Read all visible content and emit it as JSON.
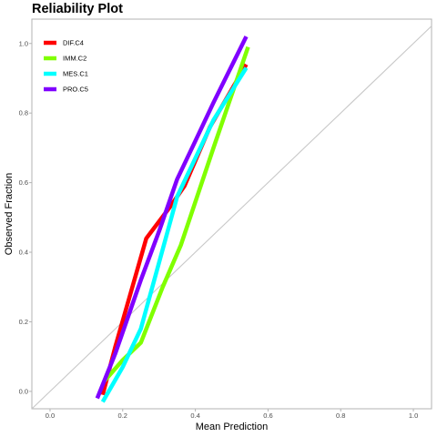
{
  "chart_data": {
    "type": "line",
    "title": "Reliability Plot",
    "xlabel": "Mean Prediction",
    "ylabel": "Observed Fraction",
    "xlim": [
      -0.05,
      1.05
    ],
    "ylim": [
      -0.05,
      1.07
    ],
    "x_ticks": [
      0.0,
      0.2,
      0.4,
      0.6,
      0.8,
      1.0
    ],
    "x_tick_labels": [
      "0.0",
      "0.2",
      "0.4",
      "0.6",
      "0.8",
      "1.0"
    ],
    "y_ticks": [
      0.0,
      0.2,
      0.4,
      0.6,
      0.8,
      1.0
    ],
    "y_tick_labels": [
      "0.0",
      "0.2",
      "0.4",
      "0.6",
      "0.8",
      "1.0"
    ],
    "grid": false,
    "legend_position": "top-left",
    "reference_line": {
      "x": [
        -0.05,
        1.05
      ],
      "y": [
        -0.05,
        1.05
      ],
      "color": "#c8c8c8"
    },
    "series": [
      {
        "name": "DIF.C4",
        "color": "#ff0000",
        "x": [
          0.145,
          0.18,
          0.265,
          0.33,
          0.37,
          0.44,
          0.54
        ],
        "y": [
          -0.01,
          0.13,
          0.44,
          0.53,
          0.59,
          0.76,
          0.94
        ]
      },
      {
        "name": "IMM.C2",
        "color": "#80ff00",
        "x": [
          0.15,
          0.2,
          0.25,
          0.31,
          0.36,
          0.45,
          0.545
        ],
        "y": [
          0.03,
          0.09,
          0.14,
          0.3,
          0.42,
          0.7,
          0.99
        ]
      },
      {
        "name": "MES.C1",
        "color": "#00ffff",
        "x": [
          0.145,
          0.2,
          0.25,
          0.3,
          0.35,
          0.45,
          0.54
        ],
        "y": [
          -0.03,
          0.07,
          0.18,
          0.37,
          0.56,
          0.78,
          0.93
        ]
      },
      {
        "name": "PRO.C5",
        "color": "#8000ff",
        "x": [
          0.13,
          0.18,
          0.25,
          0.3,
          0.35,
          0.4,
          0.45,
          0.54
        ],
        "y": [
          -0.02,
          0.11,
          0.32,
          0.46,
          0.61,
          0.72,
          0.83,
          1.02
        ]
      }
    ]
  }
}
